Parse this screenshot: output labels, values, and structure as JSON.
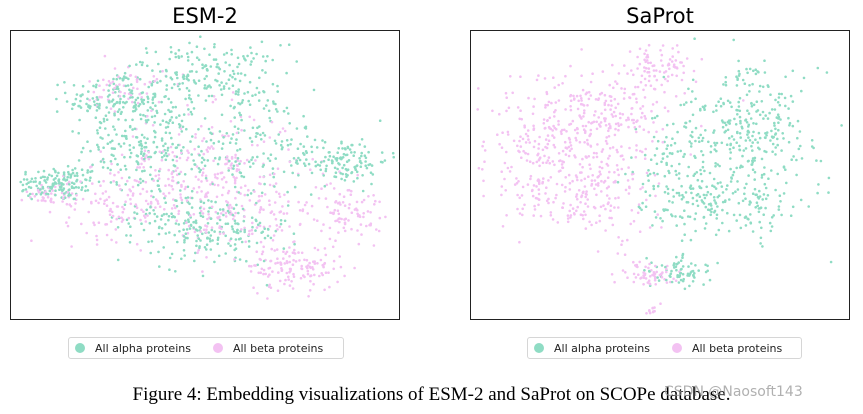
{
  "colors": {
    "alpha": "#8fdcc4",
    "beta": "#f3c2f2",
    "frame": "#222222"
  },
  "chart_data": [
    {
      "type": "scatter",
      "title": "ESM-2",
      "legend": {
        "placement": "bottom-center",
        "entries": [
          "All alpha proteins",
          "All beta proteins"
        ]
      },
      "axes": "hidden",
      "grid": false,
      "xlim": [
        0,
        1
      ],
      "ylim": [
        0,
        1
      ],
      "series": [
        {
          "name": "All alpha proteins",
          "color": "#8fdcc4",
          "clusters": [
            {
              "cx": 0.12,
              "cy": 0.47,
              "sx": 0.06,
              "sy": 0.03,
              "n": 150
            },
            {
              "cx": 0.27,
              "cy": 0.76,
              "sx": 0.06,
              "sy": 0.05,
              "n": 140
            },
            {
              "cx": 0.5,
              "cy": 0.85,
              "sx": 0.1,
              "sy": 0.05,
              "n": 180
            },
            {
              "cx": 0.35,
              "cy": 0.6,
              "sx": 0.08,
              "sy": 0.08,
              "n": 200
            },
            {
              "cx": 0.55,
              "cy": 0.3,
              "sx": 0.08,
              "sy": 0.06,
              "n": 140
            },
            {
              "cx": 0.85,
              "cy": 0.55,
              "sx": 0.06,
              "sy": 0.04,
              "n": 130
            },
            {
              "cx": 0.6,
              "cy": 0.62,
              "sx": 0.12,
              "sy": 0.1,
              "n": 180
            },
            {
              "cx": 0.42,
              "cy": 0.35,
              "sx": 0.07,
              "sy": 0.06,
              "n": 100
            }
          ]
        },
        {
          "name": "All beta proteins",
          "color": "#f3c2f2",
          "clusters": [
            {
              "cx": 0.28,
              "cy": 0.4,
              "sx": 0.07,
              "sy": 0.06,
              "n": 110
            },
            {
              "cx": 0.5,
              "cy": 0.52,
              "sx": 0.12,
              "sy": 0.1,
              "n": 230
            },
            {
              "cx": 0.73,
              "cy": 0.18,
              "sx": 0.06,
              "sy": 0.04,
              "n": 130
            },
            {
              "cx": 0.86,
              "cy": 0.38,
              "sx": 0.05,
              "sy": 0.05,
              "n": 90
            },
            {
              "cx": 0.6,
              "cy": 0.35,
              "sx": 0.09,
              "sy": 0.07,
              "n": 120
            },
            {
              "cx": 0.3,
              "cy": 0.8,
              "sx": 0.05,
              "sy": 0.04,
              "n": 60
            },
            {
              "cx": 0.1,
              "cy": 0.43,
              "sx": 0.03,
              "sy": 0.02,
              "n": 40
            }
          ]
        }
      ]
    },
    {
      "type": "scatter",
      "title": "SaProt",
      "legend": {
        "placement": "bottom-center",
        "entries": [
          "All alpha proteins",
          "All beta proteins"
        ]
      },
      "axes": "hidden",
      "grid": false,
      "xlim": [
        0,
        1
      ],
      "ylim": [
        0,
        1
      ],
      "series": [
        {
          "name": "All alpha proteins",
          "color": "#8fdcc4",
          "clusters": [
            {
              "cx": 0.72,
              "cy": 0.66,
              "sx": 0.1,
              "sy": 0.1,
              "n": 300
            },
            {
              "cx": 0.68,
              "cy": 0.4,
              "sx": 0.1,
              "sy": 0.06,
              "n": 170
            },
            {
              "cx": 0.55,
              "cy": 0.5,
              "sx": 0.06,
              "sy": 0.1,
              "n": 100
            },
            {
              "cx": 0.56,
              "cy": 0.17,
              "sx": 0.04,
              "sy": 0.025,
              "n": 70
            }
          ]
        },
        {
          "name": "All beta proteins",
          "color": "#f3c2f2",
          "clusters": [
            {
              "cx": 0.22,
              "cy": 0.6,
              "sx": 0.1,
              "sy": 0.1,
              "n": 260
            },
            {
              "cx": 0.38,
              "cy": 0.72,
              "sx": 0.09,
              "sy": 0.08,
              "n": 180
            },
            {
              "cx": 0.3,
              "cy": 0.42,
              "sx": 0.09,
              "sy": 0.06,
              "n": 160
            },
            {
              "cx": 0.48,
              "cy": 0.88,
              "sx": 0.05,
              "sy": 0.04,
              "n": 70
            },
            {
              "cx": 0.46,
              "cy": 0.16,
              "sx": 0.04,
              "sy": 0.025,
              "n": 60
            },
            {
              "cx": 0.48,
              "cy": 0.03,
              "sx": 0.01,
              "sy": 0.01,
              "n": 15
            }
          ]
        }
      ]
    }
  ],
  "caption": "Figure 4: Embedding visualizations of ESM-2 and SaProt on SCOPe database.",
  "watermark": "CSDN @Naosoft143"
}
